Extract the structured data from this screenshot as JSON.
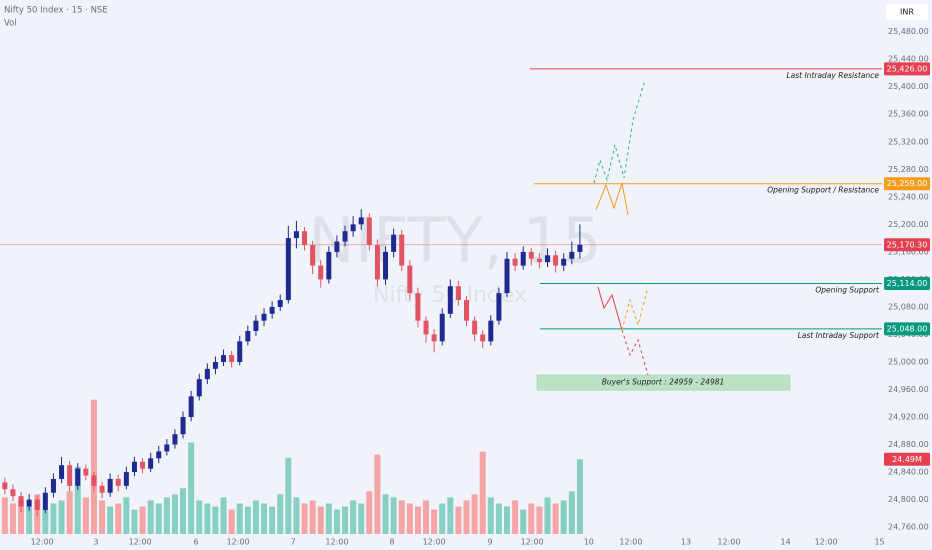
{
  "chart_data": {
    "type": "candlestick",
    "title": "Nifty 50 Index · 15 · NSE",
    "subtitle": "Vol",
    "watermark": "NIFTY, 15",
    "watermark_subtitle": "Nifty 50 Index",
    "currency": "INR",
    "up_color": "#1e2a8f",
    "down_color": "#e05463",
    "volume_up_color": "#86cfc2",
    "volume_down_color": "#f4a4a4",
    "grid": true,
    "ylim": [
      24750,
      25526
    ],
    "yticks": [
      {
        "value": 24760,
        "label": "24,760.00"
      },
      {
        "value": 24800,
        "label": "24,800.00"
      },
      {
        "value": 24840,
        "label": "24,840.00"
      },
      {
        "value": 24880,
        "label": "24,880.00"
      },
      {
        "value": 24920,
        "label": "24,920.00"
      },
      {
        "value": 24960,
        "label": "24,960.00"
      },
      {
        "value": 25000,
        "label": "25,000.00"
      },
      {
        "value": 25040,
        "label": "25,040.00"
      },
      {
        "value": 25080,
        "label": "25,080.00"
      },
      {
        "value": 25120,
        "label": "25,120.00"
      },
      {
        "value": 25160,
        "label": "25,160.00"
      },
      {
        "value": 25200,
        "label": "25,200.00"
      },
      {
        "value": 25240,
        "label": "25,240.00"
      },
      {
        "value": 25280,
        "label": "25,280.00"
      },
      {
        "value": 25320,
        "label": "25,320.00"
      },
      {
        "value": 25360,
        "label": "25,360.00"
      },
      {
        "value": 25400,
        "label": "25,400.00"
      },
      {
        "value": 25440,
        "label": "25,440.00"
      },
      {
        "value": 25480,
        "label": "25,480.00"
      }
    ],
    "xlim": [
      -0.6,
      108.3
    ],
    "xticks": [
      {
        "value": 4.6,
        "label": "12:00"
      },
      {
        "value": 11.25,
        "label": "3"
      },
      {
        "value": 16.7,
        "label": "12:00"
      },
      {
        "value": 23.6,
        "label": "6"
      },
      {
        "value": 28.8,
        "label": "12:00"
      },
      {
        "value": 35.6,
        "label": "7"
      },
      {
        "value": 41,
        "label": "12:00"
      },
      {
        "value": 47.8,
        "label": "8"
      },
      {
        "value": 53,
        "label": "12:00"
      },
      {
        "value": 59.9,
        "label": "9"
      },
      {
        "value": 65.1,
        "label": "12:00"
      },
      {
        "value": 72.1,
        "label": "10"
      },
      {
        "value": 77.3,
        "label": "12:00"
      },
      {
        "value": 84.1,
        "label": "13"
      },
      {
        "value": 89.4,
        "label": "12:00"
      },
      {
        "value": 96.4,
        "label": "14"
      },
      {
        "value": 101.4,
        "label": "12:00"
      },
      {
        "value": 108.0,
        "label": "15"
      }
    ],
    "candles": [
      [
        24825,
        24832,
        24808,
        24815
      ],
      [
        24815,
        24822,
        24798,
        24805
      ],
      [
        24805,
        24811,
        24782,
        24790
      ],
      [
        24790,
        24808,
        24784,
        24800
      ],
      [
        24800,
        24806,
        24776,
        24785
      ],
      [
        24785,
        24818,
        24780,
        24810
      ],
      [
        24810,
        24838,
        24803,
        24830
      ],
      [
        24830,
        24862,
        24824,
        24850
      ],
      [
        24850,
        24856,
        24812,
        24820
      ],
      [
        24820,
        24853,
        24814,
        24845
      ],
      [
        24845,
        24851,
        24828,
        24835
      ],
      [
        24835,
        24840,
        24812,
        24820
      ],
      [
        24820,
        24826,
        24802,
        24810
      ],
      [
        24810,
        24838,
        24804,
        24830
      ],
      [
        24830,
        24836,
        24812,
        24820
      ],
      [
        24820,
        24848,
        24815,
        24840
      ],
      [
        24840,
        24862,
        24834,
        24855
      ],
      [
        24855,
        24860,
        24838,
        24845
      ],
      [
        24845,
        24868,
        24840,
        24860
      ],
      [
        24860,
        24878,
        24853,
        24870
      ],
      [
        24870,
        24888,
        24864,
        24880
      ],
      [
        24880,
        24902,
        24874,
        24895
      ],
      [
        24895,
        24928,
        24889,
        24920
      ],
      [
        24920,
        24958,
        24914,
        24950
      ],
      [
        24950,
        24983,
        24944,
        24975
      ],
      [
        24975,
        24998,
        24968,
        24990
      ],
      [
        24990,
        25008,
        24982,
        25000
      ],
      [
        25000,
        25018,
        24994,
        25010
      ],
      [
        25010,
        25016,
        24992,
        25000
      ],
      [
        25000,
        25038,
        24995,
        25030
      ],
      [
        25030,
        25053,
        25024,
        25045
      ],
      [
        25045,
        25068,
        25038,
        25060
      ],
      [
        25060,
        25078,
        25052,
        25070
      ],
      [
        25070,
        25088,
        25063,
        25080
      ],
      [
        25080,
        25098,
        25074,
        25090
      ],
      [
        25090,
        25198,
        25085,
        25180
      ],
      [
        25180,
        25205,
        25165,
        25190
      ],
      [
        25190,
        25196,
        25162,
        25170
      ],
      [
        25170,
        25176,
        25128,
        25140
      ],
      [
        25140,
        25148,
        25108,
        25120
      ],
      [
        25120,
        25168,
        25114,
        25160
      ],
      [
        25160,
        25184,
        25152,
        25175
      ],
      [
        25175,
        25198,
        25168,
        25190
      ],
      [
        25190,
        25212,
        25182,
        25200
      ],
      [
        25200,
        25222,
        25192,
        25210
      ],
      [
        25210,
        25216,
        25162,
        25170
      ],
      [
        25170,
        25178,
        25110,
        25120
      ],
      [
        25120,
        25168,
        25112,
        25160
      ],
      [
        25160,
        25194,
        25152,
        25185
      ],
      [
        25185,
        25192,
        25132,
        25140
      ],
      [
        25140,
        25148,
        25090,
        25100
      ],
      [
        25100,
        25108,
        25050,
        25060
      ],
      [
        25060,
        25066,
        25028,
        25040
      ],
      [
        25040,
        25048,
        25014,
        25030
      ],
      [
        25030,
        25078,
        25024,
        25070
      ],
      [
        25070,
        25120,
        25064,
        25110
      ],
      [
        25110,
        25118,
        25082,
        25090
      ],
      [
        25090,
        25096,
        25052,
        25060
      ],
      [
        25060,
        25066,
        25030,
        25040
      ],
      [
        25040,
        25046,
        25020,
        25030
      ],
      [
        25030,
        25068,
        25024,
        25060
      ],
      [
        25060,
        25108,
        25054,
        25100
      ],
      [
        25100,
        25160,
        25094,
        25150
      ],
      [
        25150,
        25158,
        25132,
        25140
      ],
      [
        25140,
        25168,
        25134,
        25160
      ],
      [
        25160,
        25166,
        25140,
        25150
      ],
      [
        25150,
        25158,
        25136,
        25145
      ],
      [
        25145,
        25165,
        25138,
        25155
      ],
      [
        25155,
        25162,
        25130,
        25140
      ],
      [
        25140,
        25158,
        25132,
        25150
      ],
      [
        25150,
        25175,
        25142,
        25160
      ],
      [
        25160,
        25200,
        25150,
        25170.3
      ]
    ],
    "volume_ylim": [
      0,
      175
    ],
    "volume": [
      12,
      10,
      11,
      9,
      13,
      8,
      10,
      11,
      14,
      22,
      12,
      44,
      11,
      9,
      10,
      12,
      8,
      9,
      11,
      10,
      12,
      13,
      15,
      30,
      11,
      10,
      9,
      12,
      8,
      10,
      9,
      11,
      10,
      9,
      13,
      25,
      12,
      10,
      11,
      9,
      10,
      8,
      9,
      11,
      10,
      14,
      26,
      13,
      12,
      11,
      10,
      9,
      11,
      8,
      10,
      12,
      9,
      11,
      13,
      27,
      12,
      10,
      9,
      11,
      8,
      10,
      9,
      12,
      10,
      11,
      14,
      24.49
    ],
    "volume_last_label": "24.49M",
    "last_price": {
      "value": 25170.3,
      "label": "25,170.30",
      "color": "#e5404f"
    },
    "levels": [
      {
        "label": "Last Intraday Resistance",
        "value": 25426,
        "value_label": "25,426.00",
        "color": "#e5404f"
      },
      {
        "label": "Opening Support / Resistance",
        "value": 25259,
        "value_label": "25,259.00",
        "color": "#f59c1a"
      },
      {
        "label": "Opening Support",
        "value": 25114,
        "value_label": "25,114.00",
        "color": "#089981"
      },
      {
        "label": "Last Intraday Support",
        "value": 25048,
        "value_label": "25,048.00",
        "color": "#089981"
      }
    ],
    "zone": {
      "label": "Buyer's Support : 24959 - 24981",
      "low": 24959,
      "high": 24981,
      "color": "#b9e3c3"
    }
  }
}
